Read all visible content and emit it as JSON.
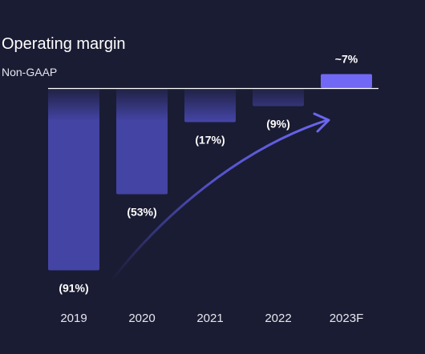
{
  "chart_data": {
    "type": "bar",
    "title": "Operating margin",
    "subtitle": "Non-GAAP",
    "categories": [
      "2019",
      "2020",
      "2021",
      "2022",
      "2023F"
    ],
    "values": [
      -91,
      -53,
      -17,
      -9,
      7
    ],
    "data_labels": [
      "(91%)",
      "(53%)",
      "(17%)",
      "(9%)",
      "~7%"
    ],
    "ylim": [
      -91,
      7
    ],
    "grid": false,
    "legend": "none",
    "xlabel": "",
    "ylabel": "",
    "colors": {
      "background": "#1a1c33",
      "negative_bar": "#4444a4",
      "positive_bar": "#7169f5",
      "axis": "#ffffff",
      "arrow": "#5a58e0"
    }
  }
}
